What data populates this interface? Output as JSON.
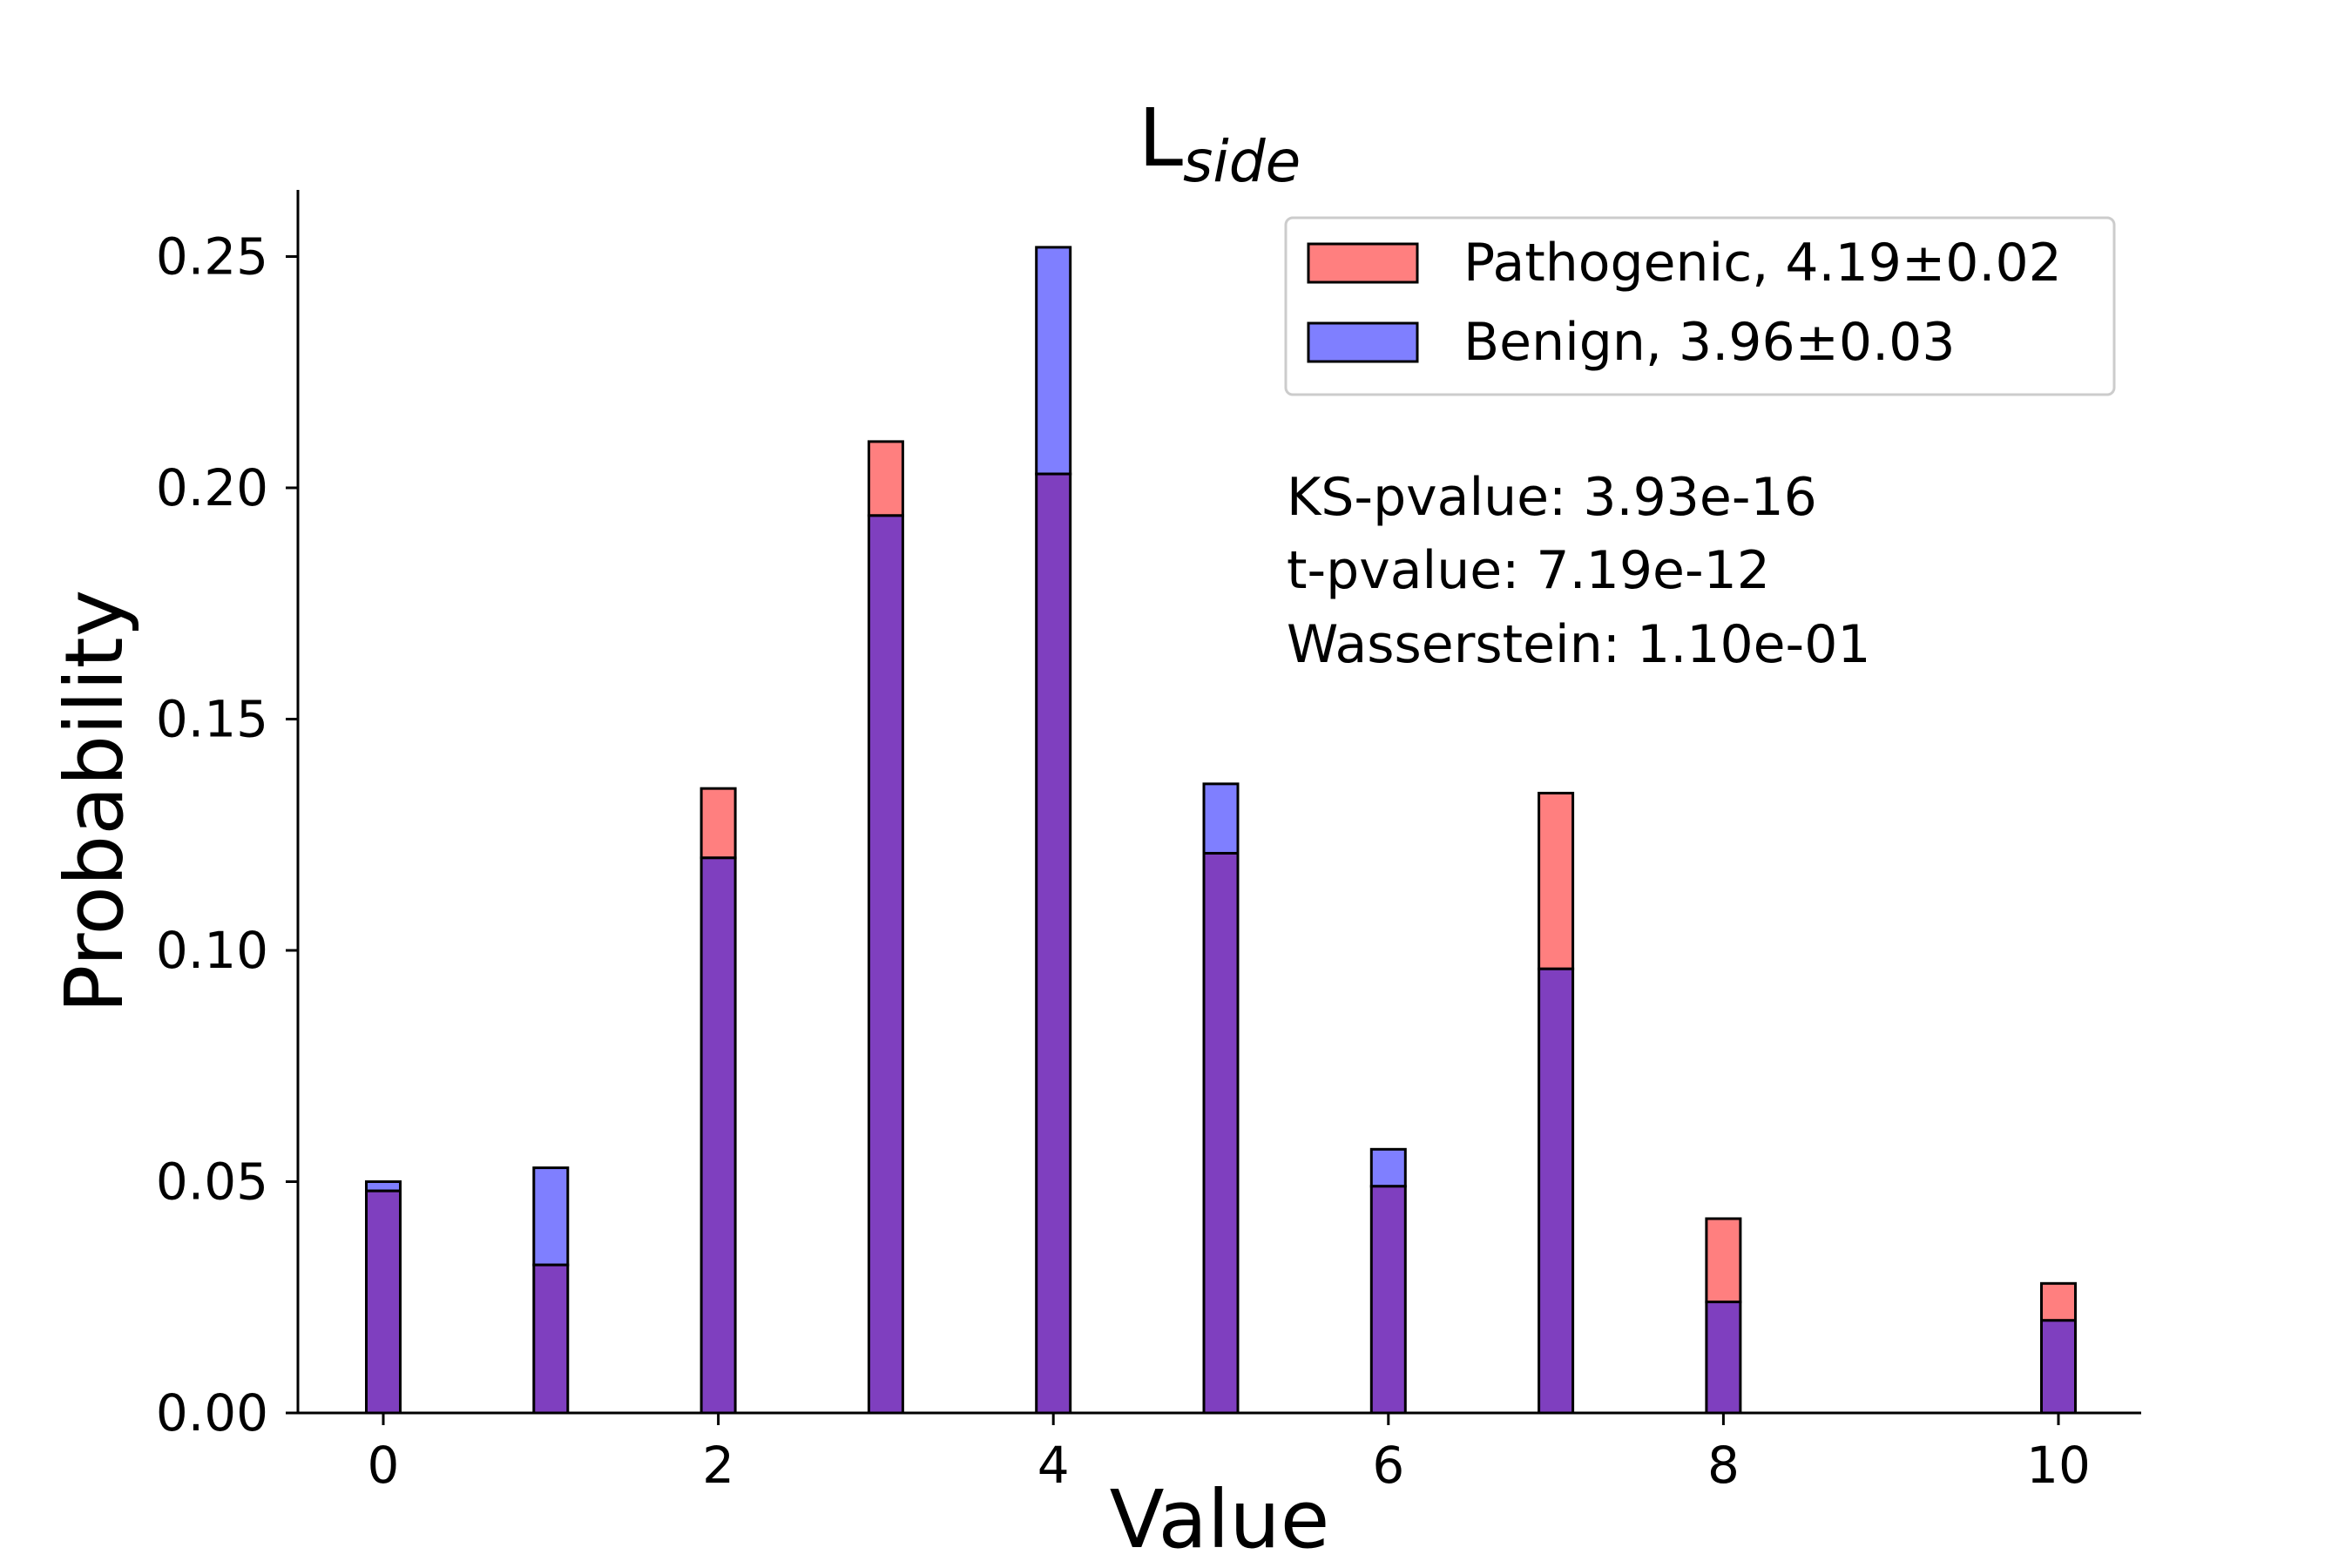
{
  "chart_data": {
    "type": "bar",
    "title": "L",
    "title_subscript": "side",
    "xlabel": "Value",
    "ylabel": "Probability",
    "xlim": [
      -0.5,
      10.5
    ],
    "ylim": [
      0,
      0.265
    ],
    "x_ticks": [
      "0",
      "2",
      "4",
      "6",
      "8",
      "10"
    ],
    "y_ticks": [
      "0.00",
      "0.05",
      "0.10",
      "0.15",
      "0.20",
      "0.25"
    ],
    "grid": false,
    "legend_position": "top-right",
    "x": [
      0,
      1,
      2,
      3,
      4,
      5,
      6,
      7,
      8,
      10
    ],
    "series": [
      {
        "name": "Pathogenic, 4.19±0.02",
        "color": "#ff7f7f",
        "values": [
          0.048,
          0.032,
          0.135,
          0.21,
          0.203,
          0.121,
          0.049,
          0.134,
          0.042,
          0.028
        ]
      },
      {
        "name": "Benign, 3.96±0.03",
        "color": "#7f7fff",
        "values": [
          0.05,
          0.053,
          0.12,
          0.194,
          0.252,
          0.136,
          0.057,
          0.096,
          0.024,
          0.02
        ]
      }
    ],
    "overlap_color": "#7f3fbf",
    "annotations": [
      "KS-pvalue: 3.93e-16",
      "t-pvalue: 7.19e-12",
      "Wasserstein: 1.10e-01"
    ]
  }
}
